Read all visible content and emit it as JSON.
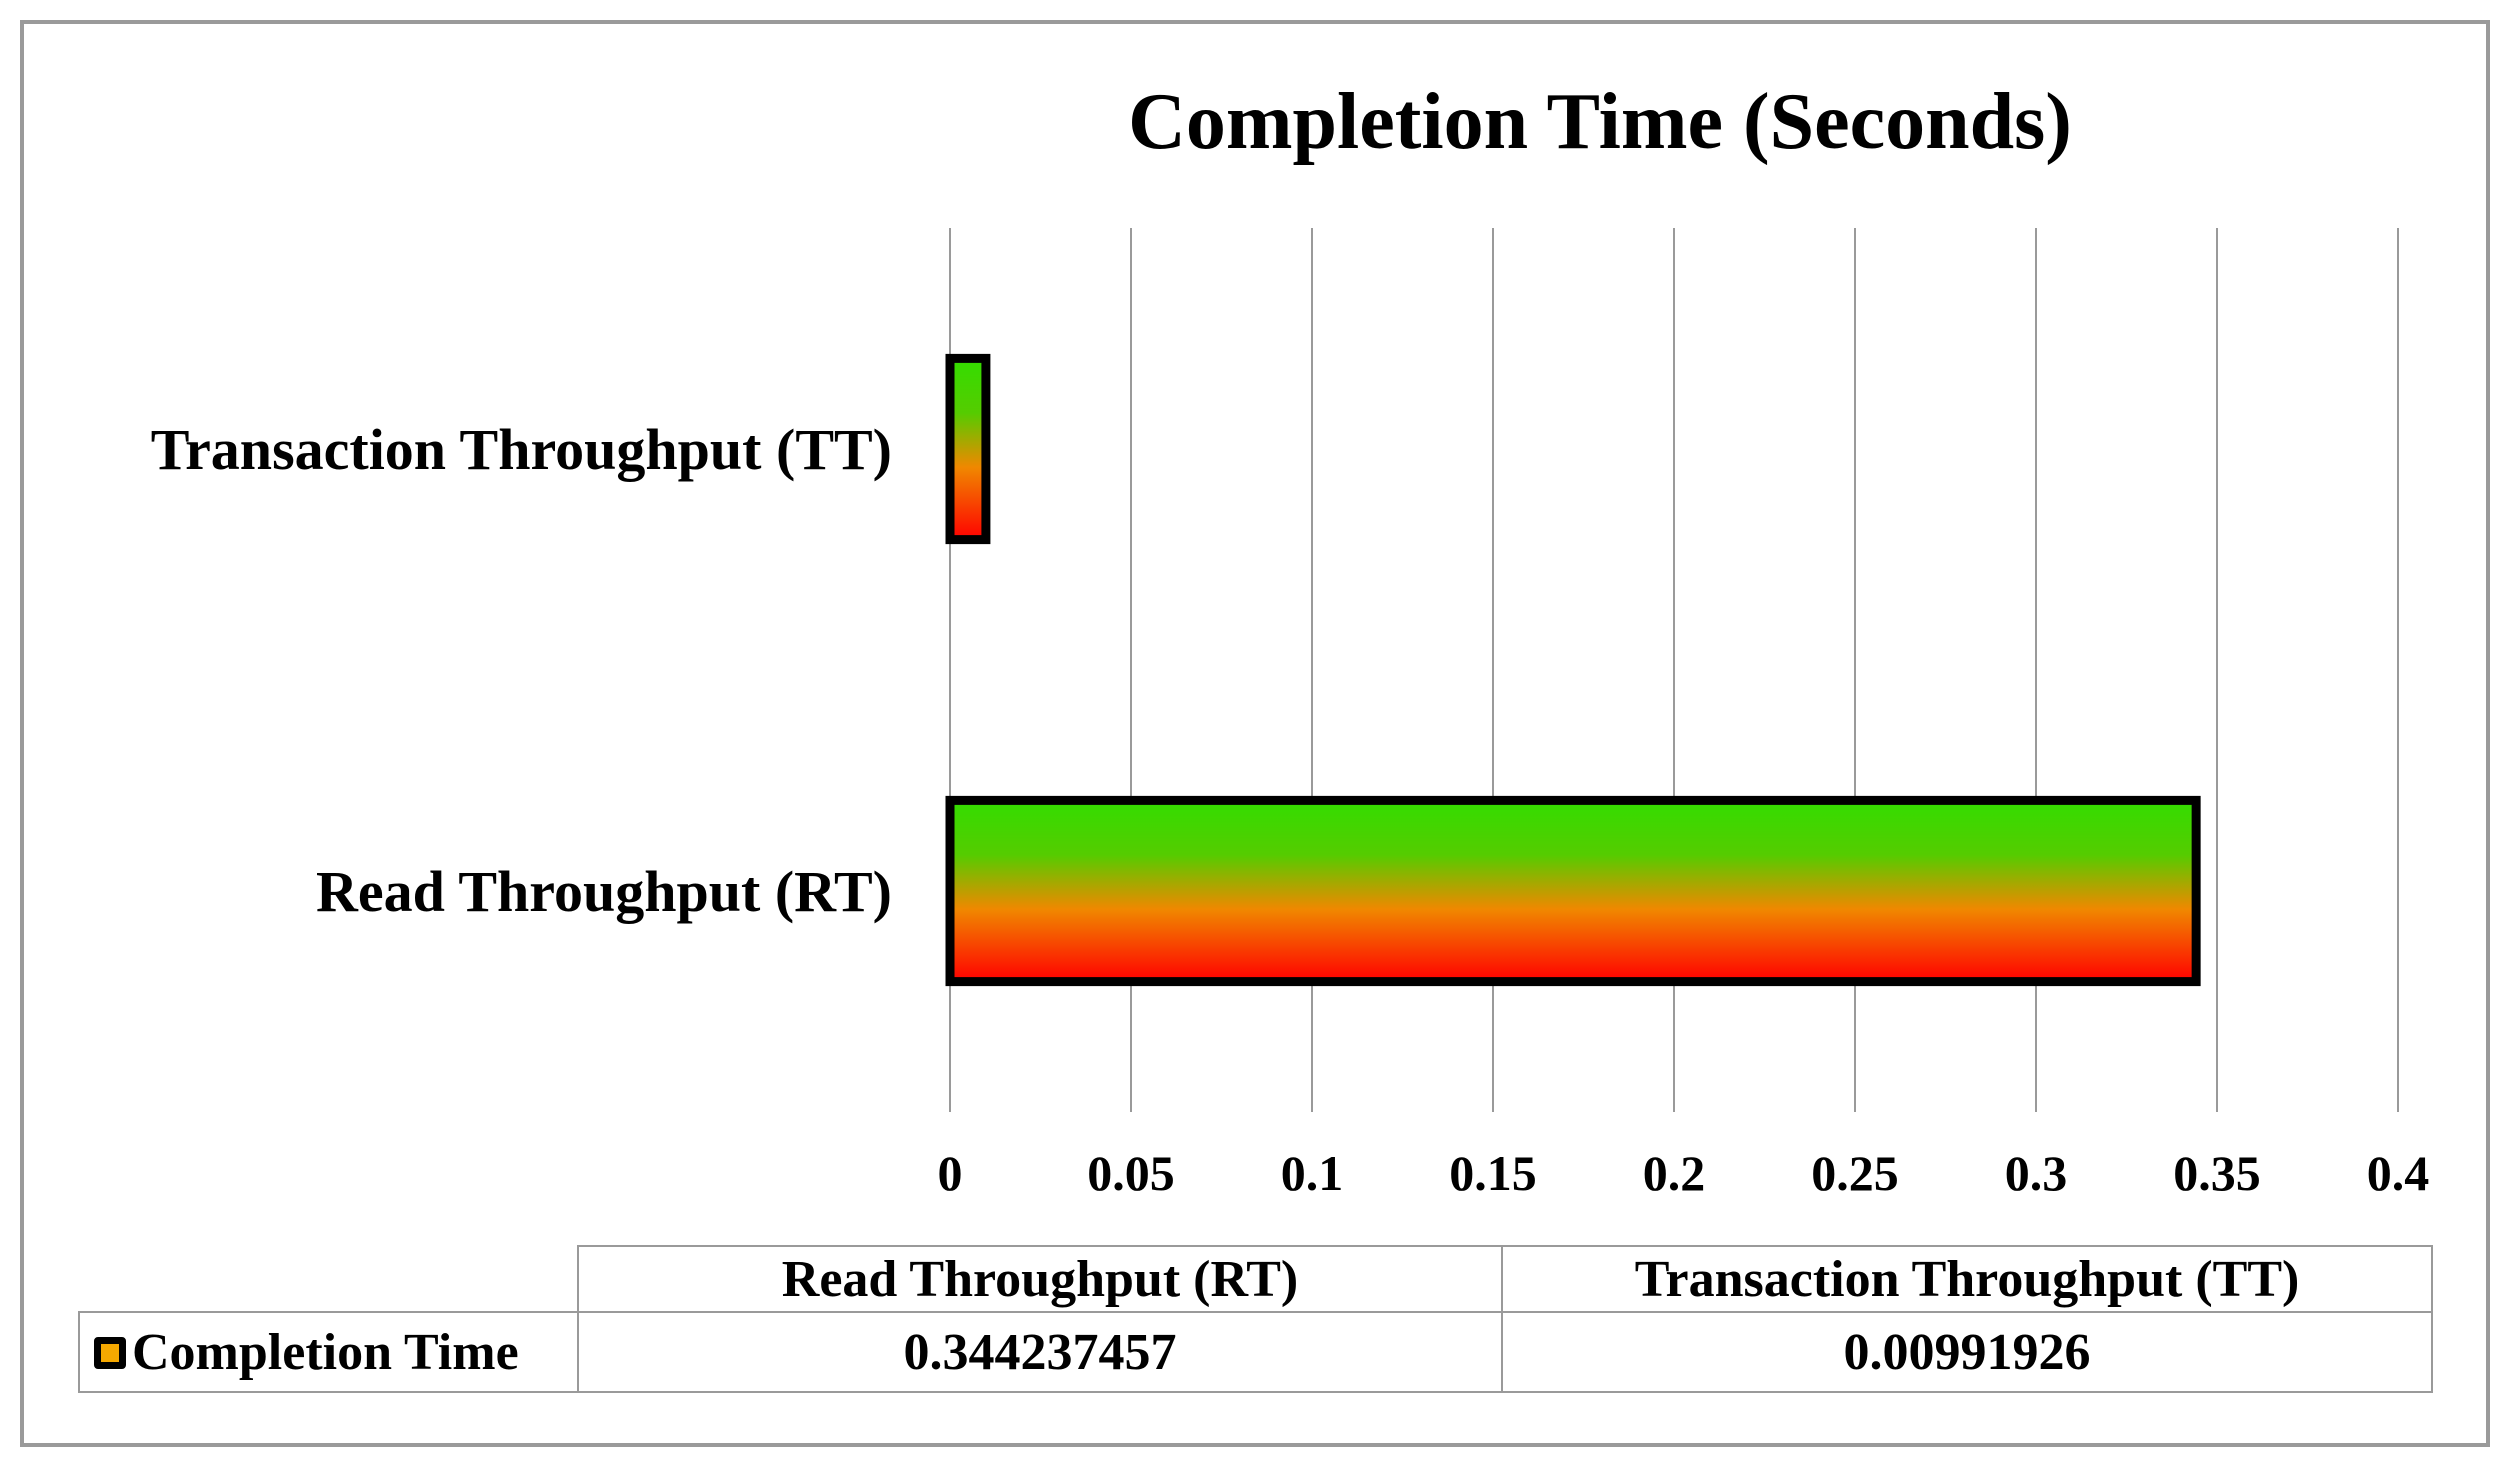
{
  "chart_data": {
    "type": "bar",
    "orientation": "horizontal",
    "title": "Completion Time (Seconds)",
    "categories": [
      "Read Throughput (RT)",
      "Transaction Throughput (TT)"
    ],
    "series": [
      {
        "name": "Completion Time",
        "values": [
          0.344237457,
          0.00991926
        ]
      }
    ],
    "xlim": [
      0,
      0.4
    ],
    "x_ticks": [
      "0",
      "0.05",
      "0.1",
      "0.15",
      "0.2",
      "0.25",
      "0.3",
      "0.35",
      "0.4"
    ],
    "grid": "vertical",
    "legend": "data-table",
    "data_table": {
      "headers": [
        "Read Throughput (RT)",
        "Transaction Throughput (TT)"
      ],
      "row_label": "Completion Time",
      "values": [
        "0.344237457",
        "0.00991926"
      ]
    },
    "colors": {
      "bar_gradient": [
        "#33dd00",
        "#f08800",
        "#ff0000"
      ],
      "bar_border": "#000000",
      "gridline": "#9a9a9a"
    }
  }
}
